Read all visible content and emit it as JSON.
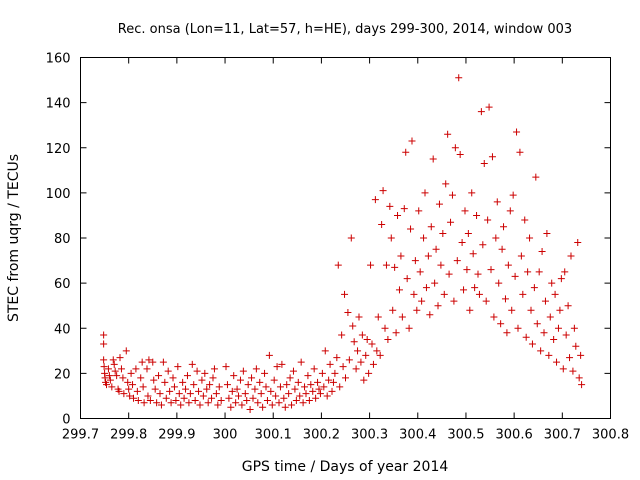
{
  "chart_data": {
    "type": "scatter",
    "title": "Rec. onsa (Lon=11, Lat=57, h=HE), days 299-300, 2014, window 003",
    "xlabel": "GPS time / Days of year 2014",
    "ylabel": "STEC from uqrg / TECUs",
    "xlim": [
      299.7,
      300.8
    ],
    "ylim": [
      0,
      160
    ],
    "xticks": [
      "299.7",
      "299.8",
      "299.9",
      "300",
      "300.1",
      "300.2",
      "300.3",
      "300.4",
      "300.5",
      "300.6",
      "300.7",
      "300.8"
    ],
    "yticks": [
      "0",
      "20",
      "40",
      "60",
      "80",
      "100",
      "120",
      "140",
      "160"
    ],
    "grid": false,
    "marker": "+",
    "color": "#cc0000",
    "series": [
      {
        "name": "",
        "points": [
          [
            299.748,
            37
          ],
          [
            299.748,
            33
          ],
          [
            299.748,
            26
          ],
          [
            299.749,
            23
          ],
          [
            299.75,
            20
          ],
          [
            299.751,
            18
          ],
          [
            299.752,
            16
          ],
          [
            299.754,
            15
          ],
          [
            299.758,
            22
          ],
          [
            299.76,
            19
          ],
          [
            299.762,
            17
          ],
          [
            299.765,
            14
          ],
          [
            299.768,
            26
          ],
          [
            299.77,
            24
          ],
          [
            299.772,
            21
          ],
          [
            299.775,
            19
          ],
          [
            299.778,
            13
          ],
          [
            299.78,
            12
          ],
          [
            299.782,
            27
          ],
          [
            299.785,
            22
          ],
          [
            299.788,
            18
          ],
          [
            299.79,
            11
          ],
          [
            299.795,
            30
          ],
          [
            299.798,
            16
          ],
          [
            299.8,
            13
          ],
          [
            299.802,
            10
          ],
          [
            299.805,
            20
          ],
          [
            299.808,
            15
          ],
          [
            299.81,
            9
          ],
          [
            299.815,
            22
          ],
          [
            299.818,
            12
          ],
          [
            299.82,
            8
          ],
          [
            299.825,
            18
          ],
          [
            299.828,
            25
          ],
          [
            299.83,
            14
          ],
          [
            299.832,
            7
          ],
          [
            299.838,
            22
          ],
          [
            299.84,
            10
          ],
          [
            299.842,
            26
          ],
          [
            299.845,
            8
          ],
          [
            299.85,
            25
          ],
          [
            299.852,
            17
          ],
          [
            299.855,
            13
          ],
          [
            299.858,
            7
          ],
          [
            299.862,
            19
          ],
          [
            299.865,
            11
          ],
          [
            299.868,
            6
          ],
          [
            299.872,
            25
          ],
          [
            299.875,
            16
          ],
          [
            299.878,
            9
          ],
          [
            299.882,
            21
          ],
          [
            299.885,
            12
          ],
          [
            299.888,
            7
          ],
          [
            299.892,
            18
          ],
          [
            299.895,
            14
          ],
          [
            299.898,
            8
          ],
          [
            299.902,
            23
          ],
          [
            299.905,
            11
          ],
          [
            299.908,
            6
          ],
          [
            299.912,
            16
          ],
          [
            299.915,
            9
          ],
          [
            299.918,
            13
          ],
          [
            299.922,
            19
          ],
          [
            299.925,
            7
          ],
          [
            299.928,
            11
          ],
          [
            299.932,
            24
          ],
          [
            299.935,
            15
          ],
          [
            299.938,
            8
          ],
          [
            299.942,
            21
          ],
          [
            299.945,
            12
          ],
          [
            299.948,
            6
          ],
          [
            299.952,
            17
          ],
          [
            299.955,
            10
          ],
          [
            299.958,
            20
          ],
          [
            299.962,
            13
          ],
          [
            299.965,
            7
          ],
          [
            299.968,
            15
          ],
          [
            299.972,
            9
          ],
          [
            299.975,
            18
          ],
          [
            299.978,
            22
          ],
          [
            299.982,
            11
          ],
          [
            299.985,
            6
          ],
          [
            299.988,
            14
          ],
          [
            299.992,
            8
          ],
          [
            300.002,
            23
          ],
          [
            300.005,
            15
          ],
          [
            300.008,
            9
          ],
          [
            300.012,
            5
          ],
          [
            300.015,
            12
          ],
          [
            300.018,
            19
          ],
          [
            300.022,
            7
          ],
          [
            300.025,
            13
          ],
          [
            300.028,
            10
          ],
          [
            300.032,
            17
          ],
          [
            300.035,
            6
          ],
          [
            300.038,
            21
          ],
          [
            300.042,
            11
          ],
          [
            300.045,
            8
          ],
          [
            300.048,
            15
          ],
          [
            300.052,
            4
          ],
          [
            300.055,
            18
          ],
          [
            300.058,
            9
          ],
          [
            300.062,
            13
          ],
          [
            300.065,
            22
          ],
          [
            300.068,
            7
          ],
          [
            300.072,
            16
          ],
          [
            300.075,
            11
          ],
          [
            300.078,
            5
          ],
          [
            300.082,
            20
          ],
          [
            300.085,
            14
          ],
          [
            300.088,
            8
          ],
          [
            300.092,
            28
          ],
          [
            300.095,
            12
          ],
          [
            300.098,
            6
          ],
          [
            300.102,
            17
          ],
          [
            300.105,
            10
          ],
          [
            300.108,
            23
          ],
          [
            300.112,
            7
          ],
          [
            300.115,
            14
          ],
          [
            300.118,
            24
          ],
          [
            300.122,
            9
          ],
          [
            300.125,
            5
          ],
          [
            300.128,
            15
          ],
          [
            300.132,
            11
          ],
          [
            300.135,
            18
          ],
          [
            300.138,
            6
          ],
          [
            300.142,
            21
          ],
          [
            300.145,
            13
          ],
          [
            300.148,
            8
          ],
          [
            300.152,
            16
          ],
          [
            300.155,
            10
          ],
          [
            300.158,
            25
          ],
          [
            300.162,
            7
          ],
          [
            300.165,
            14
          ],
          [
            300.168,
            11
          ],
          [
            300.172,
            19
          ],
          [
            300.175,
            8
          ],
          [
            300.178,
            15
          ],
          [
            300.182,
            12
          ],
          [
            300.185,
            22
          ],
          [
            300.188,
            9
          ],
          [
            300.192,
            16
          ],
          [
            300.195,
            13
          ],
          [
            300.198,
            11
          ],
          [
            300.202,
            20
          ],
          [
            300.205,
            14
          ],
          [
            300.208,
            30
          ],
          [
            300.212,
            10
          ],
          [
            300.215,
            17
          ],
          [
            300.218,
            24
          ],
          [
            300.222,
            12
          ],
          [
            300.225,
            16
          ],
          [
            300.228,
            20
          ],
          [
            300.232,
            27
          ],
          [
            300.235,
            68
          ],
          [
            300.238,
            14
          ],
          [
            300.242,
            37
          ],
          [
            300.245,
            23
          ],
          [
            300.248,
            55
          ],
          [
            300.25,
            18
          ],
          [
            300.255,
            47
          ],
          [
            300.258,
            26
          ],
          [
            300.262,
            80
          ],
          [
            300.265,
            41
          ],
          [
            300.268,
            34
          ],
          [
            300.272,
            22
          ],
          [
            300.275,
            30
          ],
          [
            300.278,
            45
          ],
          [
            300.282,
            25
          ],
          [
            300.285,
            37
          ],
          [
            300.288,
            17
          ],
          [
            300.292,
            28
          ],
          [
            300.295,
            35
          ],
          [
            300.298,
            20
          ],
          [
            300.302,
            68
          ],
          [
            300.305,
            33
          ],
          [
            300.308,
            24
          ],
          [
            300.312,
            97
          ],
          [
            300.315,
            30
          ],
          [
            300.318,
            45
          ],
          [
            300.322,
            28
          ],
          [
            300.325,
            86
          ],
          [
            300.328,
            101
          ],
          [
            300.332,
            40
          ],
          [
            300.335,
            68
          ],
          [
            300.338,
            35
          ],
          [
            300.342,
            94
          ],
          [
            300.345,
            80
          ],
          [
            300.348,
            48
          ],
          [
            300.352,
            67
          ],
          [
            300.355,
            38
          ],
          [
            300.358,
            90
          ],
          [
            300.362,
            57
          ],
          [
            300.365,
            72
          ],
          [
            300.368,
            45
          ],
          [
            300.372,
            93
          ],
          [
            300.375,
            118
          ],
          [
            300.378,
            62
          ],
          [
            300.382,
            40
          ],
          [
            300.385,
            84
          ],
          [
            300.388,
            123
          ],
          [
            300.392,
            55
          ],
          [
            300.395,
            70
          ],
          [
            300.398,
            48
          ],
          [
            300.402,
            92
          ],
          [
            300.405,
            65
          ],
          [
            300.408,
            52
          ],
          [
            300.412,
            80
          ],
          [
            300.415,
            100
          ],
          [
            300.418,
            58
          ],
          [
            300.422,
            72
          ],
          [
            300.425,
            46
          ],
          [
            300.428,
            85
          ],
          [
            300.432,
            115
          ],
          [
            300.435,
            60
          ],
          [
            300.438,
            75
          ],
          [
            300.442,
            50
          ],
          [
            300.445,
            95
          ],
          [
            300.448,
            68
          ],
          [
            300.452,
            82
          ],
          [
            300.455,
            55
          ],
          [
            300.458,
            104
          ],
          [
            300.462,
            126
          ],
          [
            300.465,
            64
          ],
          [
            300.468,
            87
          ],
          [
            300.472,
            99
          ],
          [
            300.475,
            52
          ],
          [
            300.478,
            120
          ],
          [
            300.482,
            70
          ],
          [
            300.485,
            151
          ],
          [
            300.488,
            117
          ],
          [
            300.492,
            78
          ],
          [
            300.495,
            57
          ],
          [
            300.498,
            92
          ],
          [
            300.502,
            66
          ],
          [
            300.505,
            82
          ],
          [
            300.508,
            48
          ],
          [
            300.512,
            100
          ],
          [
            300.515,
            73
          ],
          [
            300.518,
            58
          ],
          [
            300.522,
            90
          ],
          [
            300.525,
            64
          ],
          [
            300.528,
            55
          ],
          [
            300.532,
            136
          ],
          [
            300.535,
            77
          ],
          [
            300.538,
            113
          ],
          [
            300.542,
            52
          ],
          [
            300.545,
            88
          ],
          [
            300.548,
            138
          ],
          [
            300.552,
            66
          ],
          [
            300.555,
            116
          ],
          [
            300.558,
            45
          ],
          [
            300.562,
            80
          ],
          [
            300.565,
            96
          ],
          [
            300.568,
            60
          ],
          [
            300.572,
            42
          ],
          [
            300.575,
            75
          ],
          [
            300.578,
            85
          ],
          [
            300.582,
            53
          ],
          [
            300.585,
            38
          ],
          [
            300.588,
            68
          ],
          [
            300.592,
            92
          ],
          [
            300.595,
            48
          ],
          [
            300.598,
            99
          ],
          [
            300.602,
            63
          ],
          [
            300.605,
            127
          ],
          [
            300.608,
            40
          ],
          [
            300.612,
            118
          ],
          [
            300.615,
            72
          ],
          [
            300.618,
            55
          ],
          [
            300.622,
            88
          ],
          [
            300.625,
            36
          ],
          [
            300.628,
            65
          ],
          [
            300.632,
            80
          ],
          [
            300.635,
            48
          ],
          [
            300.638,
            33
          ],
          [
            300.642,
            58
          ],
          [
            300.645,
            107
          ],
          [
            300.648,
            42
          ],
          [
            300.652,
            65
          ],
          [
            300.655,
            30
          ],
          [
            300.658,
            74
          ],
          [
            300.662,
            38
          ],
          [
            300.665,
            52
          ],
          [
            300.668,
            82
          ],
          [
            300.672,
            28
          ],
          [
            300.675,
            45
          ],
          [
            300.678,
            60
          ],
          [
            300.682,
            35
          ],
          [
            300.685,
            55
          ],
          [
            300.688,
            25
          ],
          [
            300.692,
            40
          ],
          [
            300.695,
            48
          ],
          [
            300.698,
            62
          ],
          [
            300.702,
            22
          ],
          [
            300.705,
            65
          ],
          [
            300.708,
            37
          ],
          [
            300.712,
            50
          ],
          [
            300.715,
            27
          ],
          [
            300.718,
            72
          ],
          [
            300.722,
            21
          ],
          [
            300.725,
            40
          ],
          [
            300.728,
            32
          ],
          [
            300.732,
            78
          ],
          [
            300.735,
            18
          ],
          [
            300.738,
            28
          ],
          [
            300.74,
            15
          ]
        ]
      }
    ]
  }
}
